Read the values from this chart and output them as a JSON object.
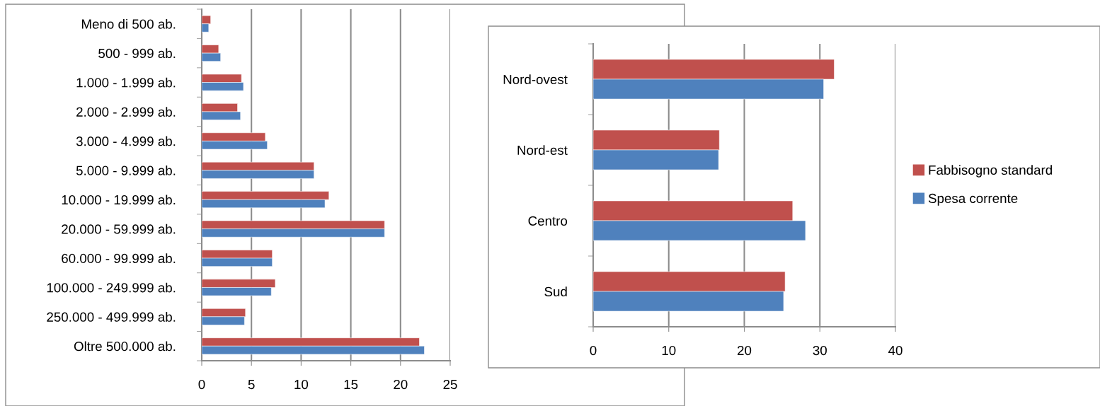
{
  "chart_data": [
    {
      "type": "bar",
      "orientation": "horizontal",
      "categories": [
        "Meno di 500 ab.",
        "500 - 999 ab.",
        "1.000 - 1.999 ab.",
        "2.000 - 2.999 ab.",
        "3.000 - 4.999 ab.",
        "5.000 - 9.999 ab.",
        "10.000 - 19.999 ab.",
        "20.000 - 59.999 ab.",
        "60.000 - 99.999 ab.",
        "100.000 - 249.999 ab.",
        "250.000 - 499.999 ab.",
        "Oltre 500.000 ab."
      ],
      "series": [
        {
          "color": "#c0504d",
          "values": [
            0.9,
            1.7,
            4.0,
            3.6,
            6.4,
            11.3,
            12.8,
            18.4,
            7.1,
            7.4,
            4.4,
            21.9
          ]
        },
        {
          "color": "#4f81bd",
          "values": [
            0.7,
            1.9,
            4.2,
            3.9,
            6.6,
            11.3,
            12.4,
            18.4,
            7.1,
            7.0,
            4.3,
            22.4
          ]
        }
      ],
      "xlim": [
        0,
        25
      ],
      "xticks": [
        0,
        5,
        10,
        15,
        20,
        25
      ],
      "grid": "x"
    },
    {
      "type": "bar",
      "orientation": "horizontal",
      "categories": [
        "Nord-ovest",
        "Nord-est",
        "Centro",
        "Sud"
      ],
      "series": [
        {
          "name": "Fabbisogno standard",
          "color": "#c0504d",
          "values": [
            31.9,
            16.7,
            26.4,
            25.4
          ]
        },
        {
          "name": "Spesa corrente",
          "color": "#4f81bd",
          "values": [
            30.5,
            16.6,
            28.1,
            25.2
          ]
        }
      ],
      "xlim": [
        0,
        40
      ],
      "xticks": [
        0,
        10,
        20,
        30,
        40
      ],
      "grid": "x",
      "legend": "right"
    }
  ]
}
